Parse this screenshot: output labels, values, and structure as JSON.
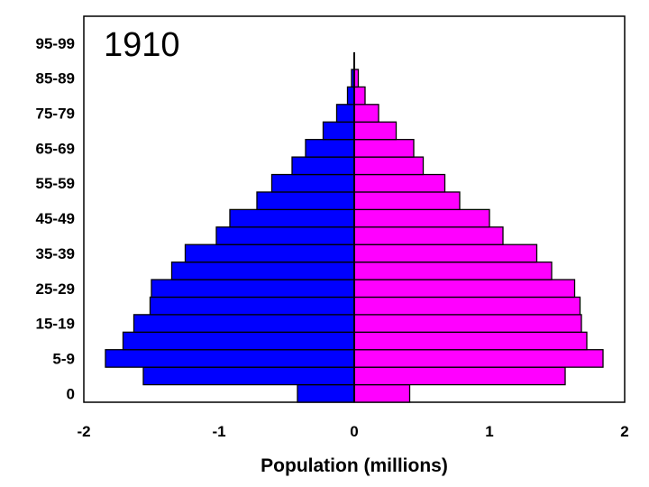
{
  "chart_data": {
    "type": "bar",
    "title": "1910",
    "xlabel": "Population (millions)",
    "ylabel": "",
    "orientation": "horizontal",
    "xlim": [
      -2,
      2
    ],
    "xticks": [
      "-2",
      "-1",
      "0",
      "1",
      "2"
    ],
    "xtick_values": [
      -2,
      -1,
      0,
      1,
      2
    ],
    "categories": [
      "0",
      "",
      "5-9",
      "",
      "15-19",
      "",
      "25-29",
      "",
      "35-39",
      "",
      "45-49",
      "",
      "55-59",
      "",
      "65-69",
      "",
      "75-79",
      "",
      "85-89",
      "",
      "95-99"
    ],
    "series": [
      {
        "color": "#0000ff",
        "values": [
          -0.42,
          -1.56,
          -1.84,
          -1.71,
          -1.63,
          -1.51,
          -1.5,
          -1.35,
          -1.25,
          -1.02,
          -0.92,
          -0.72,
          -0.61,
          -0.46,
          -0.36,
          -0.23,
          -0.13,
          -0.05,
          -0.02,
          0,
          0
        ]
      },
      {
        "color": "#ff00ff",
        "values": [
          0.41,
          1.56,
          1.84,
          1.72,
          1.68,
          1.67,
          1.63,
          1.46,
          1.35,
          1.1,
          1.0,
          0.78,
          0.67,
          0.51,
          0.44,
          0.31,
          0.18,
          0.08,
          0.03,
          0,
          0
        ]
      }
    ],
    "legend": "none",
    "grid": false
  }
}
